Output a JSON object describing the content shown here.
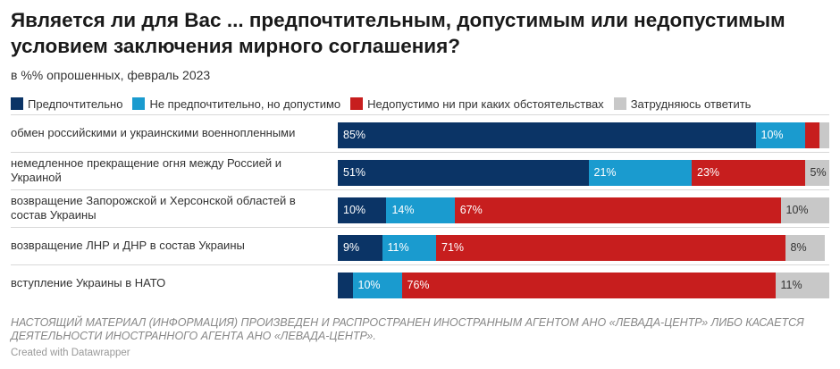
{
  "title": "Является ли для Вас ... предпочтительным, допустимым или недопустимым условием заключения мирного соглашения?",
  "subtitle": "в %% опрошенных, февраль 2023",
  "legend": [
    {
      "label": "Предпочтительно",
      "color": "#0b3466"
    },
    {
      "label": "Не предпочтительно, но допустимо",
      "color": "#1a9bcf"
    },
    {
      "label": "Недопустимо ни при каких обстоятельствах",
      "color": "#c71e1e"
    },
    {
      "label": "Затрудняюсь ответить",
      "color": "#c8c8c8"
    }
  ],
  "notice": "НАСТОЯЩИЙ МАТЕРИАЛ (ИНФОРМАЦИЯ) ПРОИЗВЕДЕН И РАСПРОСТРАНЕН ИНОСТРАННЫМ АГЕНТОМ АНО «ЛЕВАДА-ЦЕНТР» ЛИБО КАСАЕТСЯ ДЕЯТЕЛЬНОСТИ ИНОСТРАННОГО АГЕНТА АНО «ЛЕВАДА-ЦЕНТР».",
  "credit": "Created with Datawrapper",
  "chart_data": {
    "type": "bar",
    "orientation": "horizontal",
    "stacked": true,
    "title": "Является ли для Вас ... предпочтительным, допустимым или недопустимым условием заключения мирного соглашения?",
    "subtitle": "в %% опрошенных, февраль 2023",
    "categories": [
      "обмен российскими и украинскими военнопленными",
      "немедленное прекращение огня между Россией и Украиной",
      "возвращение Запорожской и Херсонской областей в состав Украины",
      "возвращение ЛНР и ДНР в состав Украины",
      "вступление Украины в НАТО"
    ],
    "series": [
      {
        "name": "Предпочтительно",
        "color": "#0b3466",
        "values": [
          85,
          51,
          10,
          9,
          3
        ],
        "labels": [
          "85%",
          "51%",
          "10%",
          "9%",
          ""
        ]
      },
      {
        "name": "Не предпочтительно, но допустимо",
        "color": "#1a9bcf",
        "values": [
          10,
          21,
          14,
          11,
          10
        ],
        "labels": [
          "10%",
          "21%",
          "14%",
          "11%",
          "10%"
        ]
      },
      {
        "name": "Недопустимо ни при каких обстоятельствах",
        "color": "#c71e1e",
        "values": [
          3,
          23,
          67,
          71,
          76
        ],
        "labels": [
          "",
          "23%",
          "67%",
          "71%",
          "76%"
        ]
      },
      {
        "name": "Затрудняюсь ответить",
        "color": "#c8c8c8",
        "values": [
          2,
          5,
          10,
          8,
          11
        ],
        "labels": [
          "",
          "5%",
          "10%",
          "8%",
          "11%"
        ]
      }
    ],
    "xlim": [
      0,
      100
    ],
    "legend": "top",
    "grid": false
  }
}
